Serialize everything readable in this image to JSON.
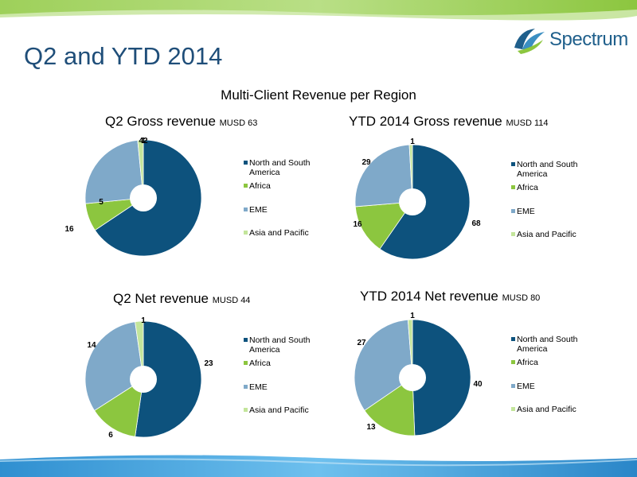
{
  "page": {
    "title": "Q2 and YTD 2014",
    "subtitle": "Multi-Client Revenue per Region"
  },
  "logo": {
    "text": "Spectrum"
  },
  "colors": {
    "north_south_america": "#0d527d",
    "africa": "#8cc63f",
    "eme": "#7fa9c9",
    "asia_pacific": "#c3e59b",
    "title": "#1f4e79"
  },
  "chart_data": [
    {
      "type": "pie",
      "title": "Q2 Gross revenue",
      "unit": "MUSD 63",
      "categories": [
        "North and South America",
        "Africa",
        "EME",
        "Asia and Pacific"
      ],
      "values": [
        42,
        5,
        16,
        1
      ],
      "labels": [
        "42",
        "5",
        "16",
        "1"
      ],
      "legend": "right"
    },
    {
      "type": "pie",
      "title": "YTD 2014 Gross revenue",
      "unit": "MUSD 114",
      "categories": [
        "North and South America",
        "Africa",
        "EME",
        "Asia and Pacific"
      ],
      "values": [
        68,
        16,
        29,
        1
      ],
      "labels": [
        "68",
        "16",
        "29",
        "1"
      ],
      "legend": "right"
    },
    {
      "type": "pie",
      "title": "Q2 Net revenue",
      "unit": "MUSD 44",
      "categories": [
        "North and South America",
        "Africa",
        "EME",
        "Asia and Pacific"
      ],
      "values": [
        23,
        6,
        14,
        1
      ],
      "labels": [
        "23",
        "6",
        "14",
        "1"
      ],
      "legend": "right"
    },
    {
      "type": "pie",
      "title": "YTD 2014 Net revenue",
      "unit": "MUSD 80",
      "categories": [
        "North and South America",
        "Africa",
        "EME",
        "Asia and Pacific"
      ],
      "values": [
        40,
        13,
        27,
        1
      ],
      "labels": [
        "40",
        "13",
        "27",
        "1"
      ],
      "legend": "right"
    }
  ]
}
